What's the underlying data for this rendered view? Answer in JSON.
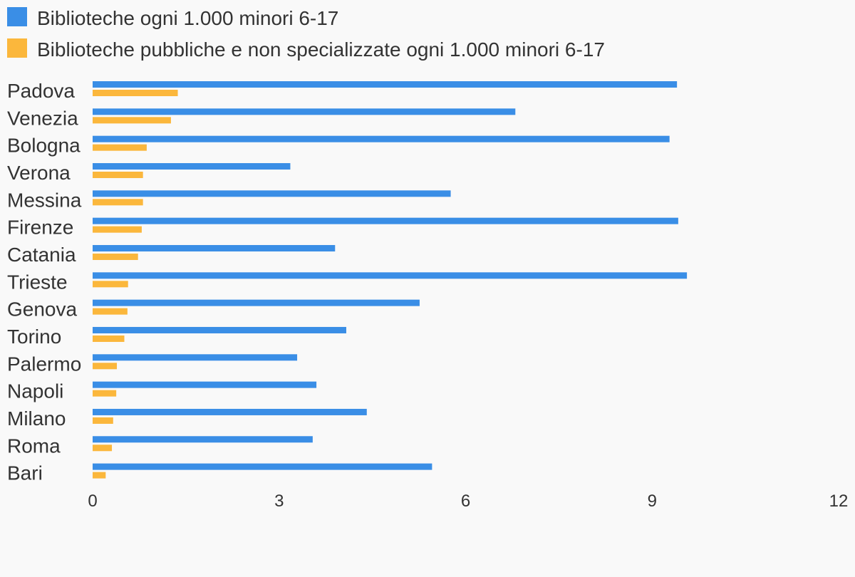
{
  "chart_data": {
    "type": "bar",
    "orientation": "horizontal",
    "categories": [
      "Padova",
      "Venezia",
      "Bologna",
      "Verona",
      "Messina",
      "Firenze",
      "Catania",
      "Trieste",
      "Genova",
      "Torino",
      "Palermo",
      "Napoli",
      "Milano",
      "Roma",
      "Bari"
    ],
    "series": [
      {
        "name": "Biblioteche ogni 1.000 minori 6-17",
        "color": "#3a8ee6",
        "values": [
          9.4,
          6.8,
          9.28,
          3.18,
          5.76,
          9.42,
          3.9,
          9.56,
          5.26,
          4.08,
          3.29,
          3.6,
          4.41,
          3.54,
          5.46
        ]
      },
      {
        "name": "Biblioteche pubbliche e non specializzate ogni 1.000 minori 6-17",
        "color": "#fbb73c",
        "values": [
          1.37,
          1.26,
          0.87,
          0.81,
          0.81,
          0.79,
          0.73,
          0.57,
          0.56,
          0.51,
          0.39,
          0.38,
          0.33,
          0.31,
          0.21
        ]
      }
    ],
    "xlim": [
      0,
      12
    ],
    "xticks": [
      "0",
      "3",
      "6",
      "9",
      "12"
    ],
    "grid": false,
    "legend_position": "top-left"
  }
}
